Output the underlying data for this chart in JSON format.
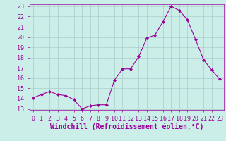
{
  "x": [
    0,
    1,
    2,
    3,
    4,
    5,
    6,
    7,
    8,
    9,
    10,
    11,
    12,
    13,
    14,
    15,
    16,
    17,
    18,
    19,
    20,
    21,
    22,
    23
  ],
  "y": [
    14.1,
    14.4,
    14.7,
    14.4,
    14.3,
    13.9,
    13.0,
    13.3,
    13.4,
    13.4,
    15.8,
    16.9,
    16.9,
    18.1,
    19.9,
    20.2,
    21.5,
    23.0,
    22.6,
    21.7,
    19.8,
    17.8,
    16.8,
    15.9
  ],
  "line_color": "#990099",
  "marker": "D",
  "marker_size": 2,
  "bg_color": "#cceee8",
  "grid_color": "#aacccc",
  "xlabel": "Windchill (Refroidissement éolien,°C)",
  "ylim": [
    13,
    23
  ],
  "xlim": [
    -0.5,
    23.5
  ],
  "yticks": [
    13,
    14,
    15,
    16,
    17,
    18,
    19,
    20,
    21,
    22,
    23
  ],
  "xticks": [
    0,
    1,
    2,
    3,
    4,
    5,
    6,
    7,
    8,
    9,
    10,
    11,
    12,
    13,
    14,
    15,
    16,
    17,
    18,
    19,
    20,
    21,
    22,
    23
  ],
  "tick_fontsize": 6,
  "xlabel_fontsize": 7
}
